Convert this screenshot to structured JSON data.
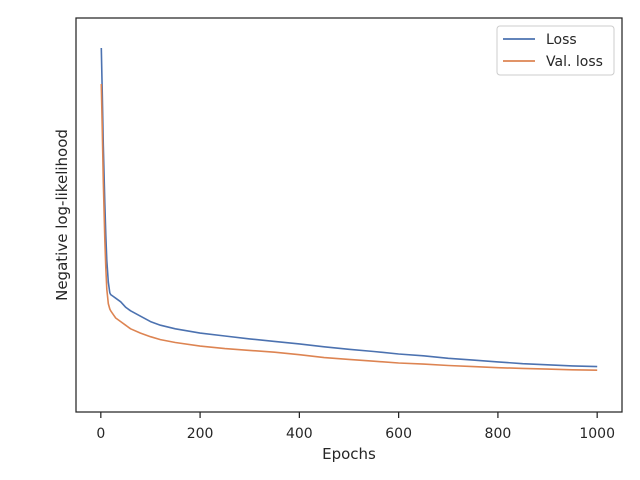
{
  "chart_data": {
    "type": "line",
    "title": "",
    "xlabel": "Epochs",
    "ylabel": "Negative log-likelihood",
    "xlim": [
      -50,
      1050
    ],
    "ylim": [
      0,
      1
    ],
    "y_tick_labels_shown": false,
    "x_ticks": [
      0,
      200,
      400,
      600,
      800,
      1000
    ],
    "x_tick_labels": [
      "0",
      "200",
      "400",
      "600",
      "800",
      "1000"
    ],
    "grid": false,
    "legend_position": "top-right",
    "series": [
      {
        "name": "Loss",
        "color": "#4c72b0",
        "x": [
          1,
          3,
          5,
          8,
          10,
          12,
          15,
          18,
          20,
          25,
          30,
          40,
          50,
          60,
          80,
          100,
          120,
          150,
          200,
          250,
          300,
          350,
          400,
          450,
          500,
          550,
          600,
          650,
          700,
          750,
          800,
          850,
          900,
          950,
          1000
        ],
        "y": [
          0.95,
          0.82,
          0.68,
          0.52,
          0.43,
          0.36,
          0.3,
          0.27,
          0.265,
          0.26,
          0.255,
          0.245,
          0.23,
          0.22,
          0.205,
          0.19,
          0.18,
          0.17,
          0.158,
          0.15,
          0.142,
          0.135,
          0.128,
          0.12,
          0.113,
          0.107,
          0.1,
          0.095,
          0.088,
          0.083,
          0.078,
          0.073,
          0.07,
          0.067,
          0.065
        ]
      },
      {
        "name": "Val. loss",
        "color": "#dd8452",
        "x": [
          1,
          3,
          5,
          8,
          10,
          12,
          15,
          18,
          20,
          25,
          30,
          40,
          50,
          60,
          80,
          100,
          120,
          150,
          200,
          250,
          300,
          350,
          400,
          450,
          500,
          550,
          600,
          650,
          700,
          750,
          800,
          850,
          900,
          950,
          1000
        ],
        "y": [
          0.85,
          0.72,
          0.58,
          0.42,
          0.34,
          0.28,
          0.24,
          0.225,
          0.22,
          0.21,
          0.2,
          0.19,
          0.18,
          0.17,
          0.158,
          0.148,
          0.14,
          0.132,
          0.122,
          0.115,
          0.11,
          0.105,
          0.098,
          0.09,
          0.085,
          0.08,
          0.075,
          0.072,
          0.068,
          0.065,
          0.062,
          0.06,
          0.058,
          0.056,
          0.055
        ]
      }
    ]
  }
}
